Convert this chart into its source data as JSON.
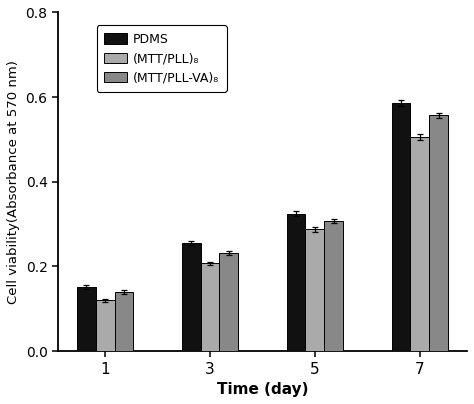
{
  "title": "",
  "xlabel": "Time (day)",
  "ylabel": "Cell viability(Absorbance at 570 nm)",
  "time_points": [
    1,
    3,
    5,
    7
  ],
  "series": [
    {
      "label": "PDMS",
      "color": "#111111",
      "values": [
        0.152,
        0.255,
        0.325,
        0.585
      ],
      "errors": [
        0.005,
        0.005,
        0.006,
        0.007
      ]
    },
    {
      "label": "(MTT/PLL)₈",
      "color": "#aaaaaa",
      "values": [
        0.12,
        0.207,
        0.288,
        0.505
      ],
      "errors": [
        0.004,
        0.004,
        0.006,
        0.007
      ]
    },
    {
      "label": "(MTT/PLL-VA)₈",
      "color": "#888888",
      "values": [
        0.14,
        0.232,
        0.308,
        0.557
      ],
      "errors": [
        0.004,
        0.004,
        0.005,
        0.006
      ]
    }
  ],
  "ylim": [
    0,
    0.8
  ],
  "yticks": [
    0.0,
    0.2,
    0.4,
    0.6,
    0.8
  ],
  "bar_width": 0.18,
  "background_color": "#ffffff",
  "edge_color": "#000000"
}
